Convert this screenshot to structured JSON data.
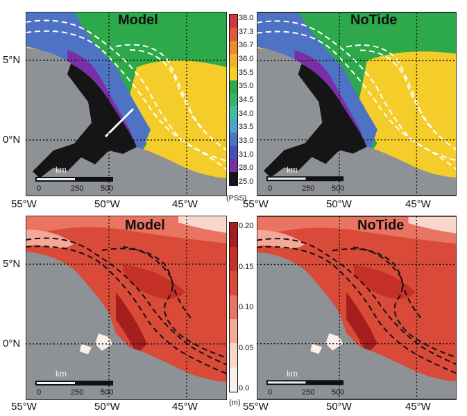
{
  "panels": [
    {
      "id": "salinity-model",
      "title": "Model",
      "variable": "salinity"
    },
    {
      "id": "salinity-notide",
      "title": "NoTide",
      "variable": "salinity"
    },
    {
      "id": "amplitude-model",
      "title": "Model",
      "variable": "amplitude"
    },
    {
      "id": "amplitude-notide",
      "title": "NoTide",
      "variable": "amplitude"
    }
  ],
  "axes": {
    "lon_labels": [
      "55°W",
      "50°W",
      "45°W"
    ],
    "lat_labels": [
      "5°N",
      "0°N"
    ]
  },
  "scale_bar": {
    "unit": "km",
    "ticks": [
      "0",
      "250",
      "500"
    ]
  },
  "salinity_colorbar": {
    "unit": "(PSS)",
    "labels": [
      "38.0",
      "37.3",
      "36.7",
      "36.0",
      "35.5",
      "35.0",
      "34.5",
      "34.0",
      "33.5",
      "33.0",
      "31.0",
      "28.0",
      "25.0"
    ],
    "colors": [
      "#d1353f",
      "#df5b3a",
      "#ec8a33",
      "#f2b12a",
      "#f4cd2a",
      "#2da84a",
      "#3ab36a",
      "#43bfa0",
      "#4fa5c8",
      "#4f73c4",
      "#4650b4",
      "#7a2fa6",
      "#16141a"
    ]
  },
  "amplitude_colorbar": {
    "unit": "(m)",
    "labels": [
      "0.20",
      "0.15",
      "0.10",
      "0.05",
      "0.0"
    ],
    "colors": [
      "#a51d1c",
      "#c53127",
      "#d94a39",
      "#ea7462",
      "#f3a898",
      "#f9d7cc",
      "#fbefe9"
    ]
  },
  "colors": {
    "land": "#8e9195",
    "shelf_dark": "#151515"
  }
}
